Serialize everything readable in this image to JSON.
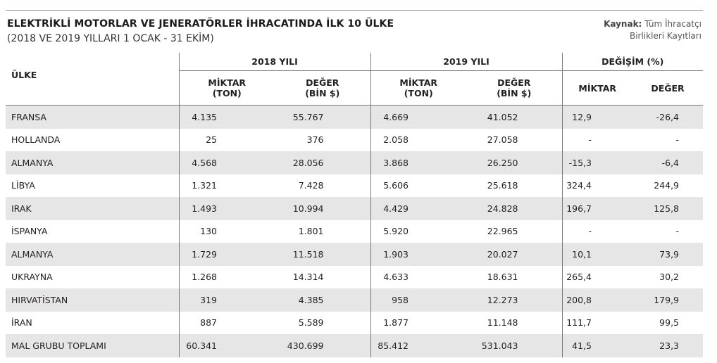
{
  "title": "ELEKTRİKLİ MOTORLAR VE JENERATÖRLER İHRACATINDA İLK 10 ÜLKE",
  "subtitle": "(2018 VE 2019 YILLARI 1 OCAK - 31 EKİM)",
  "source": {
    "label": "Kaynak:",
    "line1": "Tüm İhracatçı",
    "line2": "Birlikleri Kayıtları"
  },
  "header": {
    "country": "ÜLKE",
    "group_2018": "2018 YILI",
    "group_2019": "2019 YILI",
    "group_change": "DEĞİŞİM (%)",
    "miktar_ton_1": "MİKTAR",
    "miktar_ton_2": "(TON)",
    "deger_bin_1": "DEĞER",
    "deger_bin_2": "(BİN $)",
    "change_miktar": "MİKTAR",
    "change_deger": "DEĞER"
  },
  "rows": [
    {
      "country": "FRANSA",
      "m2018": "4.135",
      "d2018": "55.767",
      "m2019": "4.669",
      "d2019": "41.052",
      "cm": "12,9",
      "cd": "-26,4"
    },
    {
      "country": "HOLLANDA",
      "m2018": "25",
      "d2018": "376",
      "m2019": "2.058",
      "d2019": "27.058",
      "cm": "-",
      "cd": "-"
    },
    {
      "country": "ALMANYA",
      "m2018": "4.568",
      "d2018": "28.056",
      "m2019": "3.868",
      "d2019": "26.250",
      "cm": "-15,3",
      "cd": "-6,4"
    },
    {
      "country": "LİBYA",
      "m2018": "1.321",
      "d2018": "7.428",
      "m2019": "5.606",
      "d2019": "25.618",
      "cm": "324,4",
      "cd": "244,9"
    },
    {
      "country": "IRAK",
      "m2018": "1.493",
      "d2018": "10.994",
      "m2019": "4.429",
      "d2019": "24.828",
      "cm": "196,7",
      "cd": "125,8"
    },
    {
      "country": "İSPANYA",
      "m2018": "130",
      "d2018": "1.801",
      "m2019": "5.920",
      "d2019": "22.965",
      "cm": "-",
      "cd": "-"
    },
    {
      "country": "ALMANYA",
      "m2018": "1.729",
      "d2018": "11.518",
      "m2019": "1.903",
      "d2019": "20.027",
      "cm": "10,1",
      "cd": "73,9"
    },
    {
      "country": "UKRAYNA",
      "m2018": "1.268",
      "d2018": "14.314",
      "m2019": "4.633",
      "d2019": "18.631",
      "cm": "265,4",
      "cd": "30,2"
    },
    {
      "country": "HIRVATİSTAN",
      "m2018": "319",
      "d2018": "4.385",
      "m2019": "958",
      "d2019": "12.273",
      "cm": "200,8",
      "cd": "179,9"
    },
    {
      "country": "İRAN",
      "m2018": "887",
      "d2018": "5.589",
      "m2019": "1.877",
      "d2019": "11.148",
      "cm": "111,7",
      "cd": "99,5"
    },
    {
      "country": "MAL GRUBU TOPLAMI",
      "m2018": "60.341",
      "d2018": "430.699",
      "m2019": "85.412",
      "d2019": "531.043",
      "cm": "41,5",
      "cd": "23,3"
    }
  ],
  "colors": {
    "stripe": "#e6e6e6",
    "rule": "#7a7a7a",
    "text": "#231f20"
  }
}
